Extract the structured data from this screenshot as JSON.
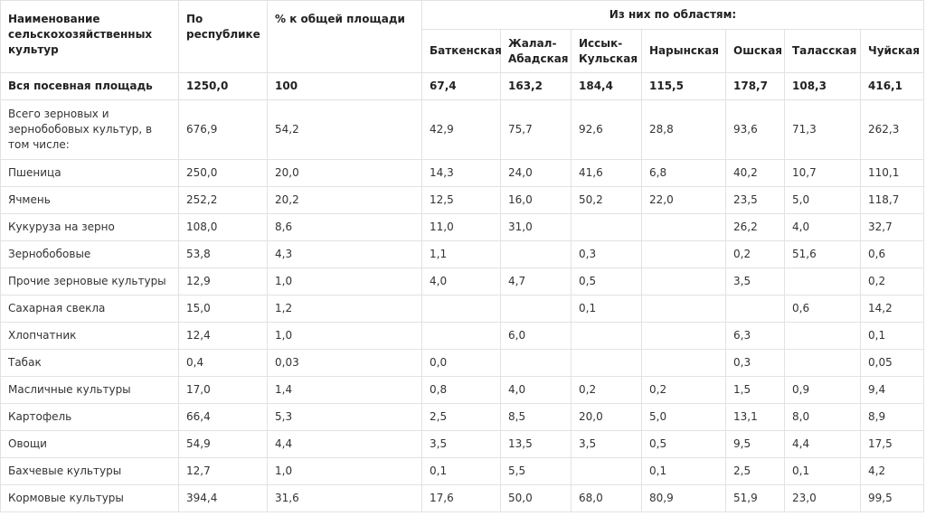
{
  "table": {
    "header": {
      "name": "Наименование сельскохозяйственных культур",
      "total": "По республике",
      "share": "% к общей площади",
      "group": "Из них по областям:",
      "regions": [
        "Баткенская",
        "Жалал-Абадская",
        "Иссык-Кульская",
        "Нарынская",
        "Ошская",
        "Таласская",
        "Чуйская"
      ]
    },
    "rows": [
      [
        "Вся посевная площадь",
        "1250,0",
        "100",
        "67,4",
        "163,2",
        "184,4",
        "115,5",
        "178,7",
        "108,3",
        "416,1"
      ],
      [
        "Всего зерновых и зернобобовых культур, в том числе:",
        "676,9",
        "54,2",
        "42,9",
        "75,7",
        "92,6",
        "28,8",
        "93,6",
        "71,3",
        "262,3"
      ],
      [
        "Пшеница",
        "250,0",
        "20,0",
        "14,3",
        "24,0",
        "41,6",
        "6,8",
        "40,2",
        "10,7",
        "110,1"
      ],
      [
        "Ячмень",
        "252,2",
        "20,2",
        "12,5",
        "16,0",
        "50,2",
        "22,0",
        "23,5",
        "5,0",
        "118,7"
      ],
      [
        "Кукуруза на зерно",
        "108,0",
        "8,6",
        "11,0",
        "31,0",
        null,
        null,
        "26,2",
        "4,0",
        "32,7"
      ],
      [
        "Зернобобовые",
        "53,8",
        "4,3",
        "1,1",
        null,
        "0,3",
        null,
        "0,2",
        "51,6",
        "0,6"
      ],
      [
        "Прочие зерновые культуры",
        "12,9",
        "1,0",
        "4,0",
        "4,7",
        "0,5",
        null,
        "3,5",
        null,
        "0,2"
      ],
      [
        "Сахарная свекла",
        "15,0",
        "1,2",
        null,
        null,
        "0,1",
        null,
        null,
        "0,6",
        "14,2"
      ],
      [
        "Хлопчатник",
        "12,4",
        "1,0",
        null,
        "6,0",
        null,
        null,
        "6,3",
        null,
        "0,1"
      ],
      [
        "Табак",
        "0,4",
        "0,03",
        "0,0",
        null,
        null,
        null,
        "0,3",
        null,
        "0,05"
      ],
      [
        "Масличные культуры",
        "17,0",
        "1,4",
        "0,8",
        "4,0",
        "0,2",
        "0,2",
        "1,5",
        "0,9",
        "9,4"
      ],
      [
        "Картофель",
        "66,4",
        "5,3",
        "2,5",
        "8,5",
        "20,0",
        "5,0",
        "13,1",
        "8,0",
        "8,9"
      ],
      [
        "Овощи",
        "54,9",
        "4,4",
        "3,5",
        "13,5",
        "3,5",
        "0,5",
        "9,5",
        "4,4",
        "17,5"
      ],
      [
        "Бахчевые культуры",
        "12,7",
        "1,0",
        "0,1",
        "5,5",
        null,
        "0,1",
        "2,5",
        "0,1",
        "4,2"
      ],
      [
        "Кормовые культуры",
        "394,4",
        "31,6",
        "17,6",
        "50,0",
        "68,0",
        "80,9",
        "51,9",
        "23,0",
        "99,5"
      ]
    ]
  }
}
